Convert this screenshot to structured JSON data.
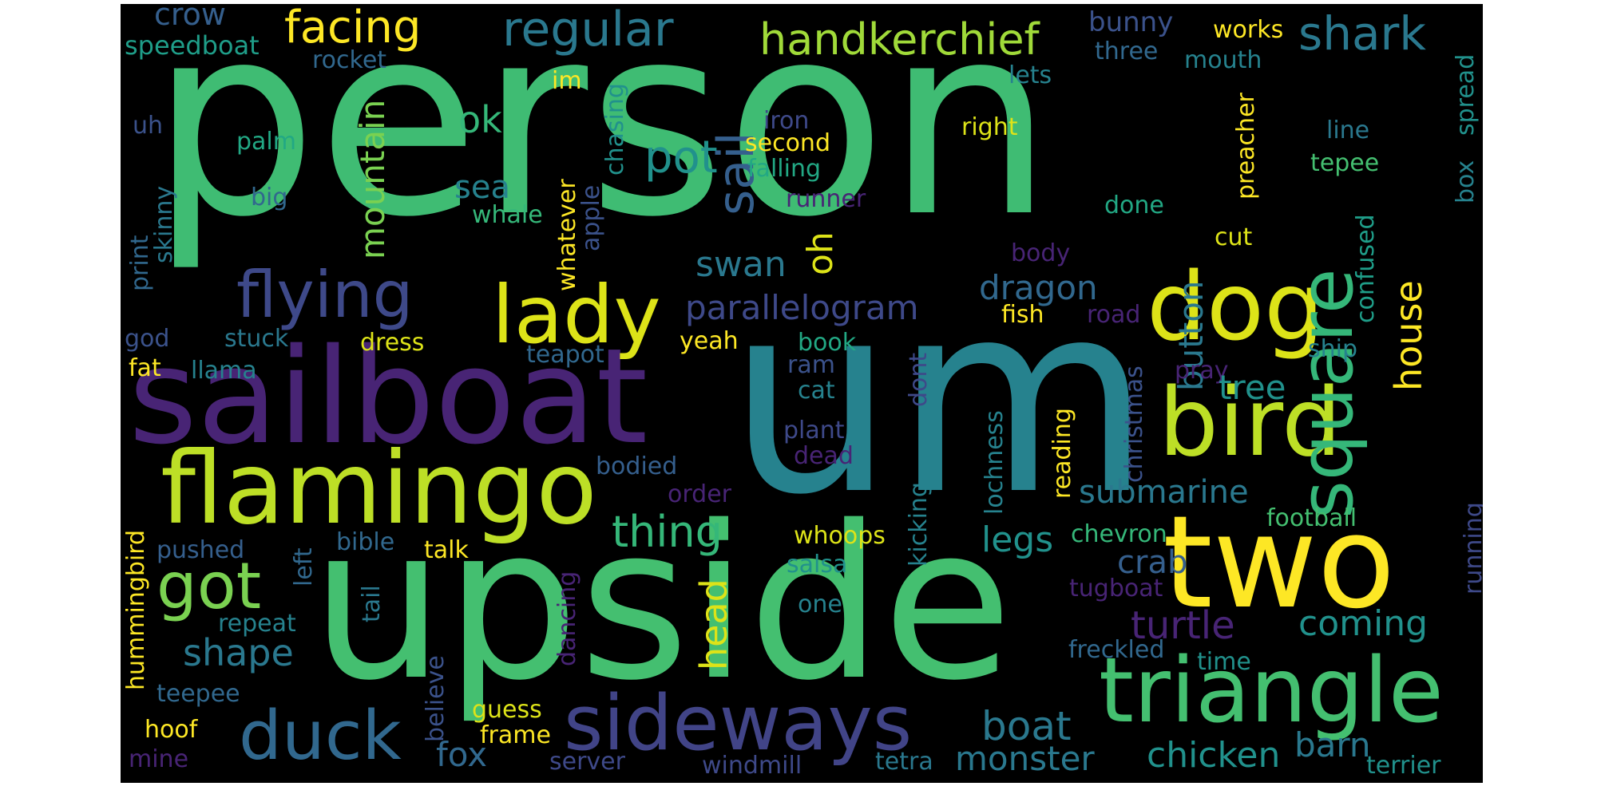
{
  "palette": {
    "background": "#000000",
    "purple": "#482475",
    "indigo": "#414487",
    "blue": "#355f8d",
    "teal": "#2a788e",
    "cyan": "#21918c",
    "green": "#22a884",
    "lightgreen": "#44bf70",
    "lime": "#7ad151",
    "yellowgreen": "#bddf26",
    "yellow": "#fde725"
  },
  "words": [
    {
      "text": "person",
      "color": "#3fbc73"
    },
    {
      "text": "um",
      "color": "#26828e"
    },
    {
      "text": "upside",
      "color": "#44bf70"
    },
    {
      "text": "sailboat",
      "color": "#482475"
    },
    {
      "text": "two",
      "color": "#fde725"
    },
    {
      "text": "bird",
      "color": "#bddf26"
    },
    {
      "text": "dog",
      "color": "#dde318"
    },
    {
      "text": "flamingo",
      "color": "#bddf26"
    },
    {
      "text": "triangle",
      "color": "#44bf70"
    },
    {
      "text": "sideways",
      "color": "#414487"
    },
    {
      "text": "lady",
      "color": "#dde318"
    },
    {
      "text": "flying",
      "color": "#3e4989"
    },
    {
      "text": "duck",
      "color": "#31688e"
    },
    {
      "text": "square",
      "color": "#35b779"
    },
    {
      "text": "got",
      "color": "#7ad151"
    },
    {
      "text": "facing",
      "color": "#fde725"
    },
    {
      "text": "regular",
      "color": "#2a788e"
    },
    {
      "text": "handkerchief",
      "color": "#a0da39"
    },
    {
      "text": "shark",
      "color": "#2a788e"
    },
    {
      "text": "crow",
      "color": "#355f8d"
    },
    {
      "text": "speedboat",
      "color": "#1f9e89"
    },
    {
      "text": "bunny",
      "color": "#3b528b"
    },
    {
      "text": "works",
      "color": "#fde725"
    },
    {
      "text": "rocket",
      "color": "#31688e"
    },
    {
      "text": "three",
      "color": "#31688e"
    },
    {
      "text": "mouth",
      "color": "#26828e"
    },
    {
      "text": "lets",
      "color": "#26828e"
    },
    {
      "text": "im",
      "color": "#fde725"
    },
    {
      "text": "mountain",
      "color": "#7ad151"
    },
    {
      "text": "ok",
      "color": "#35b779"
    },
    {
      "text": "sail",
      "color": "#355f8d"
    },
    {
      "text": "pot",
      "color": "#21918c"
    },
    {
      "text": "iron",
      "color": "#3e4989"
    },
    {
      "text": "second",
      "color": "#fde725"
    },
    {
      "text": "right",
      "color": "#dde318"
    },
    {
      "text": "line",
      "color": "#2a788e"
    },
    {
      "text": "uh",
      "color": "#3b528b"
    },
    {
      "text": "palm",
      "color": "#22a884"
    },
    {
      "text": "big",
      "color": "#31688e"
    },
    {
      "text": "sea",
      "color": "#26828e"
    },
    {
      "text": "falling",
      "color": "#22a884"
    },
    {
      "text": "tepee",
      "color": "#44bf70"
    },
    {
      "text": "runner",
      "color": "#482475"
    },
    {
      "text": "done",
      "color": "#22a884"
    },
    {
      "text": "whale",
      "color": "#35b779"
    },
    {
      "text": "preacher",
      "color": "#fde725"
    },
    {
      "text": "spread",
      "color": "#21918c"
    },
    {
      "text": "box",
      "color": "#26828e"
    },
    {
      "text": "chasing",
      "color": "#21918c"
    },
    {
      "text": "apple",
      "color": "#3b528b"
    },
    {
      "text": "whatever",
      "color": "#fde725"
    },
    {
      "text": "skinny",
      "color": "#2a788e"
    },
    {
      "text": "print",
      "color": "#31688e"
    },
    {
      "text": "swan",
      "color": "#2a788e"
    },
    {
      "text": "oh",
      "color": "#dde318"
    },
    {
      "text": "cut",
      "color": "#dde318"
    },
    {
      "text": "body",
      "color": "#482475"
    },
    {
      "text": "confused",
      "color": "#1f9e89"
    },
    {
      "text": "house",
      "color": "#fde725"
    },
    {
      "text": "parallelogram",
      "color": "#3e4989"
    },
    {
      "text": "dragon",
      "color": "#31688e"
    },
    {
      "text": "button",
      "color": "#2a788e"
    },
    {
      "text": "fish",
      "color": "#fde725"
    },
    {
      "text": "road",
      "color": "#482475"
    },
    {
      "text": "god",
      "color": "#3b528b"
    },
    {
      "text": "stuck",
      "color": "#2a788e"
    },
    {
      "text": "dress",
      "color": "#dde318"
    },
    {
      "text": "book",
      "color": "#22a884"
    },
    {
      "text": "yeah",
      "color": "#fde725"
    },
    {
      "text": "ship",
      "color": "#26828e"
    },
    {
      "text": "fat",
      "color": "#fde725"
    },
    {
      "text": "llama",
      "color": "#26828e"
    },
    {
      "text": "teapot",
      "color": "#31688e"
    },
    {
      "text": "ram",
      "color": "#3b528b"
    },
    {
      "text": "dont",
      "color": "#3e4989"
    },
    {
      "text": "christmas",
      "color": "#3b528b"
    },
    {
      "text": "pray",
      "color": "#482475"
    },
    {
      "text": "tree",
      "color": "#21918c"
    },
    {
      "text": "cat",
      "color": "#26828e"
    },
    {
      "text": "plant",
      "color": "#3e4989"
    },
    {
      "text": "dead",
      "color": "#482475"
    },
    {
      "text": "reading",
      "color": "#fde725"
    },
    {
      "text": "lochness",
      "color": "#26828e"
    },
    {
      "text": "bodied",
      "color": "#355f8d"
    },
    {
      "text": "order",
      "color": "#482475"
    },
    {
      "text": "submarine",
      "color": "#2a788e"
    },
    {
      "text": "kicking",
      "color": "#26828e"
    },
    {
      "text": "running",
      "color": "#3e4989"
    },
    {
      "text": "football",
      "color": "#44bf70"
    },
    {
      "text": "hummingbird",
      "color": "#fde725"
    },
    {
      "text": "pushed",
      "color": "#355f8d"
    },
    {
      "text": "bible",
      "color": "#31688e"
    },
    {
      "text": "talk",
      "color": "#fde725"
    },
    {
      "text": "thing",
      "color": "#35b779"
    },
    {
      "text": "whoops",
      "color": "#dde318"
    },
    {
      "text": "legs",
      "color": "#21918c"
    },
    {
      "text": "chevron",
      "color": "#35b779"
    },
    {
      "text": "crab",
      "color": "#355f8d"
    },
    {
      "text": "salsa",
      "color": "#21918c"
    },
    {
      "text": "left",
      "color": "#31688e"
    },
    {
      "text": "tail",
      "color": "#2a788e"
    },
    {
      "text": "dancing",
      "color": "#482475"
    },
    {
      "text": "head",
      "color": "#dde318"
    },
    {
      "text": "turtle",
      "color": "#482475"
    },
    {
      "text": "tugboat",
      "color": "#482475"
    },
    {
      "text": "shape",
      "color": "#2a788e"
    },
    {
      "text": "repeat",
      "color": "#26828e"
    },
    {
      "text": "one",
      "color": "#26828e"
    },
    {
      "text": "coming",
      "color": "#21918c"
    },
    {
      "text": "believe",
      "color": "#3b528b"
    },
    {
      "text": "freckled",
      "color": "#31688e"
    },
    {
      "text": "time",
      "color": "#21918c"
    },
    {
      "text": "teepee",
      "color": "#31688e"
    },
    {
      "text": "guess",
      "color": "#dde318"
    },
    {
      "text": "boat",
      "color": "#2a788e"
    },
    {
      "text": "hoof",
      "color": "#fde725"
    },
    {
      "text": "frame",
      "color": "#fde725"
    },
    {
      "text": "barn",
      "color": "#2a788e"
    },
    {
      "text": "mine",
      "color": "#482475"
    },
    {
      "text": "fox",
      "color": "#31688e"
    },
    {
      "text": "server",
      "color": "#3e4989"
    },
    {
      "text": "monster",
      "color": "#2a788e"
    },
    {
      "text": "chicken",
      "color": "#21918c"
    },
    {
      "text": "windmill",
      "color": "#3e4989"
    },
    {
      "text": "tetra",
      "color": "#2a788e"
    },
    {
      "text": "terrier",
      "color": "#21918c"
    }
  ]
}
